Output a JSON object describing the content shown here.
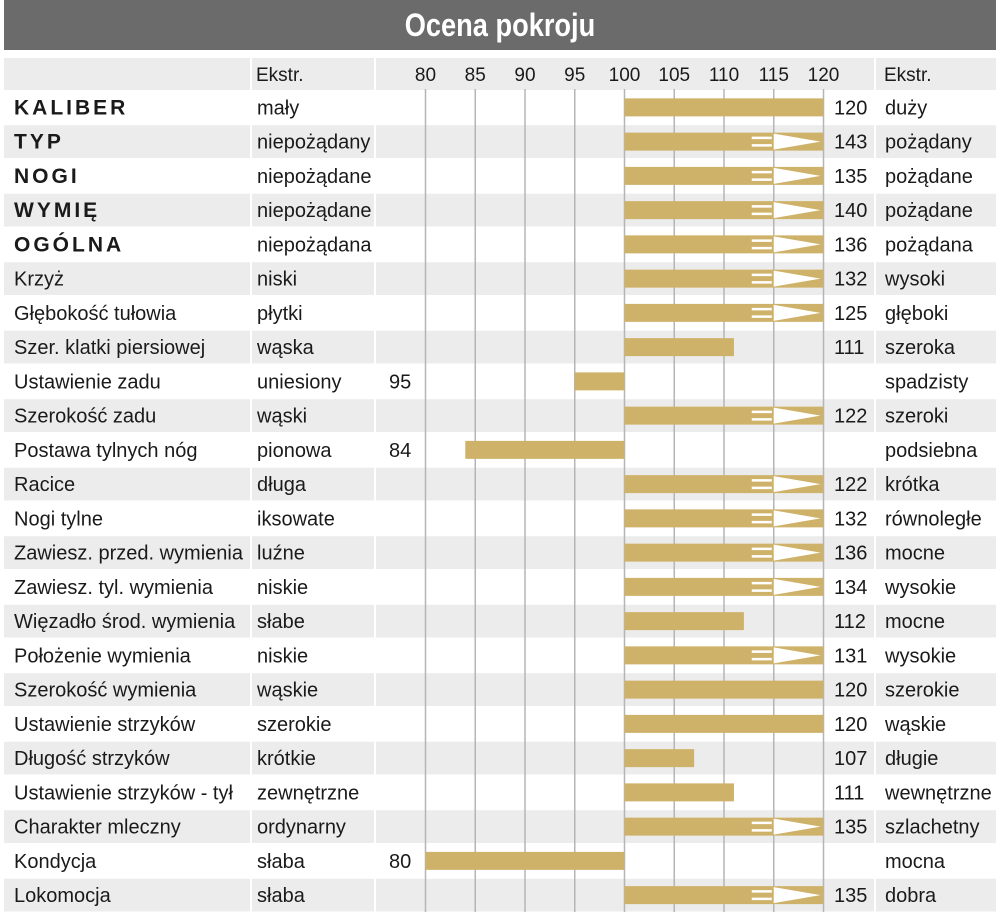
{
  "title": "Ocena pokroju",
  "header": {
    "left_ext": "Ekstr.",
    "right_ext": "Ekstr."
  },
  "colors": {
    "bar": "#cfb26a",
    "title_bg": "#6b6b6b",
    "row_alt": "#ececec",
    "grid": "#b5b5b5"
  },
  "chart_data": {
    "type": "bar",
    "orientation": "horizontal",
    "title": "Ocena pokroju",
    "axis_ticks": [
      80,
      85,
      90,
      95,
      100,
      105,
      110,
      115,
      120
    ],
    "xlim": [
      80,
      120
    ],
    "baseline": 100,
    "overflow_marker": "arrow beyond 115 when value exceeds 120",
    "rows": [
      {
        "name": "KALIBER",
        "bold": true,
        "low": "mały",
        "high": "duży",
        "value": 120
      },
      {
        "name": "TYP",
        "bold": true,
        "low": "niepożądany",
        "high": "pożądany",
        "value": 143
      },
      {
        "name": "NOGI",
        "bold": true,
        "low": "niepożądane",
        "high": "pożądane",
        "value": 135
      },
      {
        "name": "WYMIĘ",
        "bold": true,
        "low": "niepożądane",
        "high": "pożądane",
        "value": 140
      },
      {
        "name": "OGÓLNA",
        "bold": true,
        "low": "niepożądana",
        "high": "pożądana",
        "value": 136
      },
      {
        "name": "Krzyż",
        "bold": false,
        "low": "niski",
        "high": "wysoki",
        "value": 132
      },
      {
        "name": "Głębokość tułowia",
        "bold": false,
        "low": "płytki",
        "high": "głęboki",
        "value": 125
      },
      {
        "name": "Szer. klatki piersiowej",
        "bold": false,
        "low": "wąska",
        "high": "szeroka",
        "value": 111
      },
      {
        "name": "Ustawienie zadu",
        "bold": false,
        "low": "uniesiony",
        "high": "spadzisty",
        "value": 95
      },
      {
        "name": "Szerokość zadu",
        "bold": false,
        "low": "wąski",
        "high": "szeroki",
        "value": 122
      },
      {
        "name": "Postawa tylnych nóg",
        "bold": false,
        "low": "pionowa",
        "high": "podsiebna",
        "value": 84
      },
      {
        "name": "Racice",
        "bold": false,
        "low": "długa",
        "high": "krótka",
        "value": 122
      },
      {
        "name": "Nogi tylne",
        "bold": false,
        "low": "iksowate",
        "high": "równoległe",
        "value": 132
      },
      {
        "name": "Zawiesz. przed. wymienia",
        "bold": false,
        "low": "luźne",
        "high": "mocne",
        "value": 136
      },
      {
        "name": "Zawiesz. tyl. wymienia",
        "bold": false,
        "low": "niskie",
        "high": "wysokie",
        "value": 134
      },
      {
        "name": "Więzadło środ. wymienia",
        "bold": false,
        "low": "słabe",
        "high": "mocne",
        "value": 112
      },
      {
        "name": "Położenie wymienia",
        "bold": false,
        "low": "niskie",
        "high": "wysokie",
        "value": 131
      },
      {
        "name": "Szerokość wymienia",
        "bold": false,
        "low": "wąskie",
        "high": "szerokie",
        "value": 120
      },
      {
        "name": "Ustawienie strzyków",
        "bold": false,
        "low": "szerokie",
        "high": "wąskie",
        "value": 120
      },
      {
        "name": "Długość strzyków",
        "bold": false,
        "low": "krótkie",
        "high": "długie",
        "value": 107
      },
      {
        "name": "Ustawienie strzyków - tył",
        "bold": false,
        "low": "zewnętrzne",
        "high": "wewnętrzne",
        "value": 111
      },
      {
        "name": "Charakter mleczny",
        "bold": false,
        "low": "ordynarny",
        "high": "szlachetny",
        "value": 135
      },
      {
        "name": "Kondycja",
        "bold": false,
        "low": "słaba",
        "high": "mocna",
        "value": 80
      },
      {
        "name": "Lokomocja",
        "bold": false,
        "low": "słaba",
        "high": "dobra",
        "value": 135
      }
    ]
  }
}
